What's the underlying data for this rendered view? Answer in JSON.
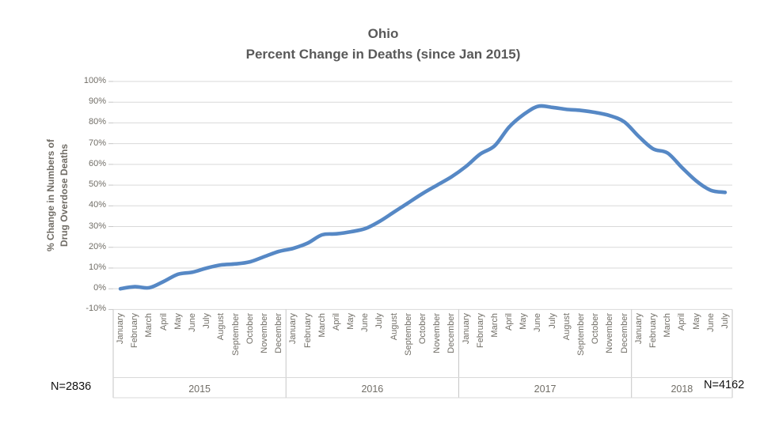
{
  "title": {
    "line1": "Ohio",
    "line2": "Percent Change in Deaths (since Jan 2015)"
  },
  "y_axis": {
    "title_line1": "% Change in Numbers of",
    "title_line2": "Drug Overdose Deaths",
    "tick_labels": [
      "100%",
      "90%",
      "80%",
      "70%",
      "60%",
      "50%",
      "40%",
      "30%",
      "20%",
      "10%",
      "0%",
      "-10%"
    ],
    "tick_values": [
      100,
      90,
      80,
      70,
      60,
      50,
      40,
      30,
      20,
      10,
      0,
      -10
    ]
  },
  "annotations": {
    "n_left": "N=2836",
    "n_right": "N=4162"
  },
  "colors": {
    "line": "#5688C5",
    "gridline": "#D9D9D9",
    "axis": "#C6C6C6",
    "title_text": "#595959",
    "label_text": "#716E67",
    "n_text": "#111111"
  },
  "chart_data": {
    "type": "line",
    "title": "Ohio — Percent Change in Deaths (since Jan 2015)",
    "xlabel": "",
    "ylabel": "% Change in Numbers of Drug Overdose Deaths",
    "unit": "%",
    "ylim": [
      -10,
      100
    ],
    "y_tick_step": 10,
    "grid": "horizontal",
    "legend": "none",
    "x_axis_style": "two-tier category (months grouped by year)",
    "groups": [
      {
        "year": "2015",
        "months": [
          "January",
          "February",
          "March",
          "April",
          "May",
          "June",
          "July",
          "August",
          "September",
          "October",
          "November",
          "December"
        ],
        "values": [
          0,
          1,
          0.5,
          3.5,
          7,
          8,
          10,
          11.5,
          12,
          13,
          15.5,
          18
        ]
      },
      {
        "year": "2016",
        "months": [
          "January",
          "February",
          "March",
          "April",
          "May",
          "June",
          "July",
          "August",
          "September",
          "October",
          "November",
          "December"
        ],
        "values": [
          19.5,
          22,
          26,
          26.5,
          27.5,
          29,
          32.5,
          37,
          41.5,
          46,
          50,
          54
        ]
      },
      {
        "year": "2017",
        "months": [
          "January",
          "February",
          "March",
          "April",
          "May",
          "June",
          "July",
          "August",
          "September",
          "October",
          "November",
          "December"
        ],
        "values": [
          59,
          65,
          69,
          78,
          84,
          88,
          87.5,
          86.5,
          86,
          85,
          83.5,
          80.5
        ]
      },
      {
        "year": "2018",
        "months": [
          "January",
          "February",
          "March",
          "April",
          "May",
          "June",
          "July"
        ],
        "values": [
          73.5,
          67.5,
          65.5,
          58.5,
          52,
          47.5,
          46.5
        ]
      }
    ]
  }
}
